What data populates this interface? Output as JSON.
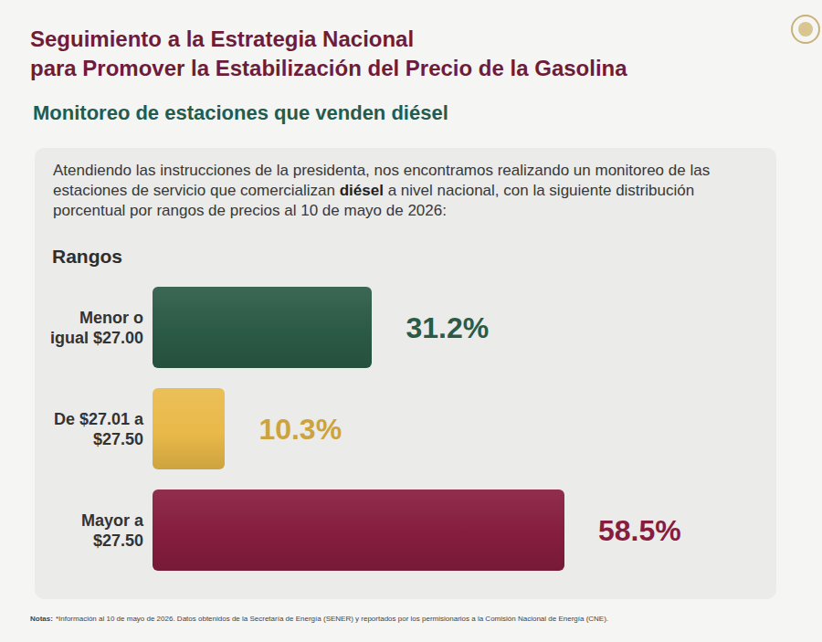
{
  "header": {
    "title": [
      "Seguimiento a la Estrategia Nacional",
      "para Promover la Estabilización del Precio de la Gasolina"
    ],
    "subtitle": "Monitoreo de estaciones que venden diésel"
  },
  "intro": {
    "parts": [
      {
        "text": "Atendiendo las instrucciones de la presidenta, nos encontramos realizando un monitoreo de las estaciones de servicio que comercializan ",
        "bold": false
      },
      {
        "text": "diésel",
        "bold": true
      },
      {
        "text": " a nivel nacional, con la siguiente distribución porcentual por rangos de precios al 10 de mayo de 2026:",
        "bold": false
      }
    ]
  },
  "chart_data": {
    "type": "bar",
    "orientation": "horizontal",
    "y_label": "Rangos",
    "categories": [
      "Menor o igual $27.00",
      "De $27.01 a $27.50",
      "Mayor a $27.50"
    ],
    "values": [
      31.2,
      10.3,
      58.5
    ],
    "value_labels": [
      "31.2%",
      "10.3%",
      "58.5%"
    ],
    "colors": [
      "#2b5a46",
      "#e9b949",
      "#861d3e"
    ],
    "xlim": [
      0,
      65
    ],
    "grid": false,
    "data_labels": true,
    "tick_labels": "y"
  },
  "notes": {
    "label": "Notas:",
    "text": "*Información al 10 de mayo de 2026. Datos obtenidos de la Secretaría de Energía (SENER) y reportados por los permisionarios a la Comisión Nacional de Energía (CNE)."
  }
}
